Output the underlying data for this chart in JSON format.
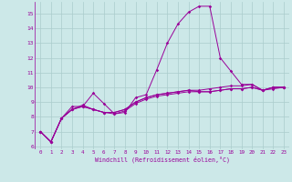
{
  "xlabel": "Windchill (Refroidissement éolien,°C)",
  "bg_color": "#cce8e8",
  "line_color": "#990099",
  "grid_color": "#aacccc",
  "xlim": [
    -0.5,
    23.5
  ],
  "ylim": [
    5.8,
    15.8
  ],
  "yticks": [
    6,
    7,
    8,
    9,
    10,
    11,
    12,
    13,
    14,
    15
  ],
  "xticks": [
    0,
    1,
    2,
    3,
    4,
    5,
    6,
    7,
    8,
    9,
    10,
    11,
    12,
    13,
    14,
    15,
    16,
    17,
    18,
    19,
    20,
    21,
    22,
    23
  ],
  "series": [
    [
      7.0,
      6.3,
      7.9,
      8.7,
      8.7,
      9.6,
      8.9,
      8.2,
      8.3,
      9.3,
      9.5,
      11.2,
      13.0,
      14.3,
      15.1,
      15.5,
      15.5,
      12.0,
      11.1,
      10.2,
      10.2,
      9.8,
      10.0,
      10.0
    ],
    [
      7.0,
      6.3,
      7.9,
      8.5,
      8.7,
      8.5,
      8.3,
      8.3,
      8.5,
      9.0,
      9.3,
      9.5,
      9.6,
      9.7,
      9.8,
      9.8,
      9.9,
      10.0,
      10.1,
      10.1,
      10.2,
      9.8,
      10.0,
      10.0
    ],
    [
      7.0,
      6.3,
      7.9,
      8.5,
      8.8,
      8.5,
      8.3,
      8.3,
      8.5,
      9.0,
      9.3,
      9.5,
      9.6,
      9.7,
      9.8,
      9.7,
      9.7,
      9.8,
      9.9,
      9.9,
      10.0,
      9.8,
      10.0,
      10.0
    ],
    [
      7.0,
      6.3,
      7.9,
      8.5,
      8.7,
      8.5,
      8.3,
      8.2,
      8.4,
      8.9,
      9.2,
      9.4,
      9.5,
      9.6,
      9.7,
      9.7,
      9.7,
      9.8,
      9.9,
      9.9,
      10.0,
      9.8,
      9.9,
      10.0
    ]
  ],
  "fig_width": 3.2,
  "fig_height": 2.0,
  "dpi": 100
}
